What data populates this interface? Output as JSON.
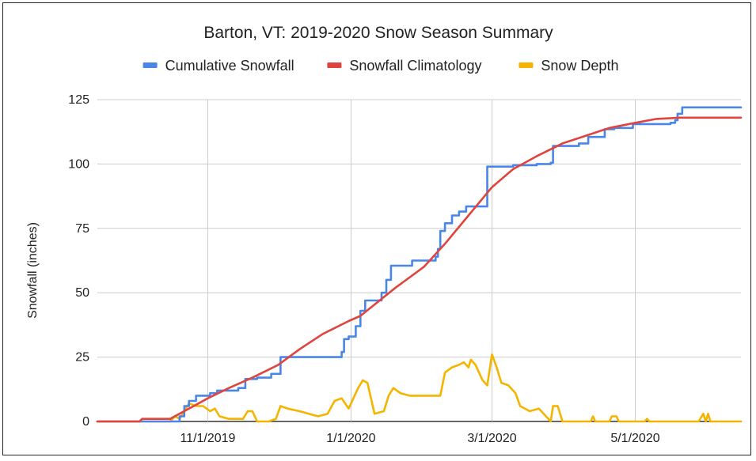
{
  "chart_data": {
    "type": "line",
    "title": "Barton, VT: 2019-2020 Snow Season Summary",
    "xlabel": "",
    "ylabel": "Snowfall (inches)",
    "xlim": [
      "2019-09-15",
      "2020-06-15"
    ],
    "ylim": [
      0,
      125
    ],
    "yticks": [
      0,
      25,
      50,
      75,
      100,
      125
    ],
    "xticks": [
      {
        "date": "2019-11-01",
        "label": "11/1/2019"
      },
      {
        "date": "2020-01-01",
        "label": "1/1/2020"
      },
      {
        "date": "2020-03-01",
        "label": "3/1/2020"
      },
      {
        "date": "2020-05-01",
        "label": "5/1/2020"
      }
    ],
    "grid": true,
    "legend_position": "top",
    "series": [
      {
        "name": "Cumulative Snowfall",
        "color": "#4a86e8",
        "step": true,
        "points": [
          [
            "2019-09-15",
            0
          ],
          [
            "2019-10-09",
            0
          ],
          [
            "2019-10-16",
            0
          ],
          [
            "2019-10-20",
            2
          ],
          [
            "2019-10-22",
            6
          ],
          [
            "2019-10-24",
            8
          ],
          [
            "2019-10-27",
            10
          ],
          [
            "2019-11-02",
            11
          ],
          [
            "2019-11-05",
            12
          ],
          [
            "2019-11-14",
            13
          ],
          [
            "2019-11-17",
            16.5
          ],
          [
            "2019-11-22",
            17
          ],
          [
            "2019-11-28",
            18.5
          ],
          [
            "2019-12-02",
            25
          ],
          [
            "2019-12-28",
            27
          ],
          [
            "2019-12-29",
            32
          ],
          [
            "2019-12-31",
            33
          ],
          [
            "2020-01-03",
            37
          ],
          [
            "2020-01-05",
            43
          ],
          [
            "2020-01-07",
            47
          ],
          [
            "2020-01-14",
            50
          ],
          [
            "2020-01-16",
            55
          ],
          [
            "2020-01-18",
            60.5
          ],
          [
            "2020-01-27",
            62.5
          ],
          [
            "2020-02-06",
            64
          ],
          [
            "2020-02-07",
            67
          ],
          [
            "2020-02-08",
            74
          ],
          [
            "2020-02-10",
            77
          ],
          [
            "2020-02-13",
            80
          ],
          [
            "2020-02-16",
            81.5
          ],
          [
            "2020-02-19",
            83.5
          ],
          [
            "2020-02-28",
            99
          ],
          [
            "2020-03-10",
            99.5
          ],
          [
            "2020-03-20",
            100
          ],
          [
            "2020-03-26",
            100.5
          ],
          [
            "2020-03-27",
            107
          ],
          [
            "2020-04-07",
            108
          ],
          [
            "2020-04-11",
            110.5
          ],
          [
            "2020-04-18",
            113.5
          ],
          [
            "2020-04-22",
            114
          ],
          [
            "2020-04-30",
            115.5
          ],
          [
            "2020-05-16",
            116
          ],
          [
            "2020-05-18",
            117
          ],
          [
            "2020-05-19",
            119.5
          ],
          [
            "2020-05-21",
            122
          ],
          [
            "2020-06-15",
            122
          ]
        ]
      },
      {
        "name": "Snowfall Climatology",
        "color": "#e0443e",
        "step": false,
        "points": [
          [
            "2019-09-15",
            0
          ],
          [
            "2019-10-03",
            0
          ],
          [
            "2019-10-04",
            1
          ],
          [
            "2019-10-16",
            1
          ],
          [
            "2019-10-20",
            3
          ],
          [
            "2019-10-26",
            6
          ],
          [
            "2019-11-01",
            9
          ],
          [
            "2019-11-10",
            13
          ],
          [
            "2019-11-20",
            17
          ],
          [
            "2019-12-01",
            22
          ],
          [
            "2019-12-10",
            28
          ],
          [
            "2019-12-20",
            34
          ],
          [
            "2019-12-31",
            39
          ],
          [
            "2020-01-05",
            41
          ],
          [
            "2020-01-20",
            52
          ],
          [
            "2020-02-01",
            60
          ],
          [
            "2020-02-10",
            69
          ],
          [
            "2020-02-20",
            80
          ],
          [
            "2020-03-01",
            91
          ],
          [
            "2020-03-10",
            98
          ],
          [
            "2020-03-20",
            103
          ],
          [
            "2020-03-31",
            108
          ],
          [
            "2020-04-10",
            111
          ],
          [
            "2020-04-20",
            114
          ],
          [
            "2020-05-01",
            116
          ],
          [
            "2020-05-10",
            117.5
          ],
          [
            "2020-05-20",
            118
          ],
          [
            "2020-06-15",
            118
          ]
        ]
      },
      {
        "name": "Snow Depth",
        "color": "#f4b400",
        "step": false,
        "points": [
          [
            "2019-09-15",
            0
          ],
          [
            "2019-10-16",
            0
          ],
          [
            "2019-10-18",
            2
          ],
          [
            "2019-10-20",
            1
          ],
          [
            "2019-10-22",
            4
          ],
          [
            "2019-10-24",
            7
          ],
          [
            "2019-10-27",
            6
          ],
          [
            "2019-10-30",
            6
          ],
          [
            "2019-11-02",
            4
          ],
          [
            "2019-11-04",
            5
          ],
          [
            "2019-11-06",
            2
          ],
          [
            "2019-11-10",
            1
          ],
          [
            "2019-11-16",
            1
          ],
          [
            "2019-11-18",
            4
          ],
          [
            "2019-11-20",
            4
          ],
          [
            "2019-11-22",
            0
          ],
          [
            "2019-11-27",
            0
          ],
          [
            "2019-11-30",
            1
          ],
          [
            "2019-12-02",
            6
          ],
          [
            "2019-12-05",
            5
          ],
          [
            "2019-12-10",
            4
          ],
          [
            "2019-12-14",
            3
          ],
          [
            "2019-12-18",
            2
          ],
          [
            "2019-12-22",
            3
          ],
          [
            "2019-12-25",
            8
          ],
          [
            "2019-12-28",
            9
          ],
          [
            "2019-12-31",
            5
          ],
          [
            "2020-01-02",
            9
          ],
          [
            "2020-01-04",
            13
          ],
          [
            "2020-01-06",
            16
          ],
          [
            "2020-01-08",
            15
          ],
          [
            "2020-01-11",
            3
          ],
          [
            "2020-01-15",
            4
          ],
          [
            "2020-01-17",
            10
          ],
          [
            "2020-01-19",
            13
          ],
          [
            "2020-01-22",
            11
          ],
          [
            "2020-01-26",
            10
          ],
          [
            "2020-02-01",
            10
          ],
          [
            "2020-02-08",
            10
          ],
          [
            "2020-02-10",
            19
          ],
          [
            "2020-02-13",
            21
          ],
          [
            "2020-02-16",
            22
          ],
          [
            "2020-02-18",
            23
          ],
          [
            "2020-02-20",
            21
          ],
          [
            "2020-02-21",
            24
          ],
          [
            "2020-02-23",
            22
          ],
          [
            "2020-02-26",
            16
          ],
          [
            "2020-02-28",
            14
          ],
          [
            "2020-03-01",
            26
          ],
          [
            "2020-03-03",
            21
          ],
          [
            "2020-03-05",
            15
          ],
          [
            "2020-03-08",
            14
          ],
          [
            "2020-03-11",
            11
          ],
          [
            "2020-03-13",
            6
          ],
          [
            "2020-03-17",
            4
          ],
          [
            "2020-03-21",
            5
          ],
          [
            "2020-03-24",
            2
          ],
          [
            "2020-03-26",
            0
          ],
          [
            "2020-03-27",
            6
          ],
          [
            "2020-03-29",
            6
          ],
          [
            "2020-03-31",
            0
          ],
          [
            "2020-04-12",
            0
          ],
          [
            "2020-04-13",
            2
          ],
          [
            "2020-04-14",
            0
          ],
          [
            "2020-04-20",
            0
          ],
          [
            "2020-04-21",
            2
          ],
          [
            "2020-04-23",
            2
          ],
          [
            "2020-04-24",
            0
          ],
          [
            "2020-05-05",
            0
          ],
          [
            "2020-05-06",
            1
          ],
          [
            "2020-05-07",
            0
          ],
          [
            "2020-05-28",
            0
          ],
          [
            "2020-05-30",
            3
          ],
          [
            "2020-05-31",
            0
          ],
          [
            "2020-06-01",
            3
          ],
          [
            "2020-06-02",
            0
          ],
          [
            "2020-06-15",
            0
          ]
        ]
      }
    ]
  }
}
